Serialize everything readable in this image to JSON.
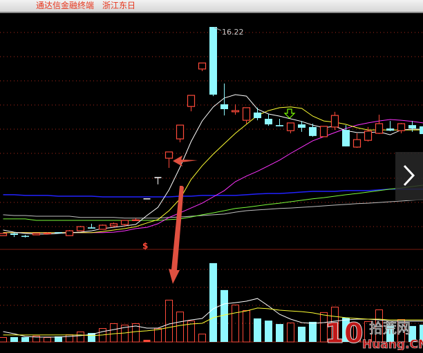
{
  "window": {
    "app_title": "通达信金融终端",
    "stock_name": "浙江东日"
  },
  "nav": {
    "next_icon": "chevron-right-icon"
  },
  "watermark": {
    "text_number": "10",
    "text_cn": "拾荒网",
    "text_en": "Huang.CN"
  },
  "annotations": {
    "high_label": "16.22",
    "dollar_mark": "$",
    "left_arrow_color": "#e05040",
    "down_arrow_color": "#e05040",
    "signal_arrow_color": "#7cfc00"
  },
  "colors": {
    "up": "#ff4a3a",
    "down": "#8ff8ff",
    "flat": "#ffffff",
    "grid": "#b02a1a",
    "ma5": "#ffffff",
    "ma10": "#ffff33",
    "ma20": "#ff33ff",
    "ma_green": "#7cfc3a",
    "ma_gray": "#c0c0c0",
    "ma_blue": "#2222ff"
  },
  "chart_data": [
    {
      "type": "candlestick",
      "title": "",
      "max_price_label": 16.22,
      "grid": true,
      "ohlc": [
        [
          7.59,
          7.68,
          7.59,
          7.68
        ],
        [
          7.68,
          7.73,
          7.53,
          7.62
        ],
        [
          7.58,
          7.62,
          7.51,
          7.56
        ],
        [
          7.62,
          7.68,
          7.62,
          7.68
        ],
        [
          7.68,
          7.73,
          7.68,
          7.69
        ],
        [
          7.73,
          7.73,
          7.7,
          7.7
        ],
        [
          7.59,
          7.82,
          7.59,
          7.79
        ],
        [
          7.79,
          7.99,
          7.79,
          7.96
        ],
        [
          7.93,
          8.08,
          7.88,
          7.88
        ],
        [
          7.85,
          8.05,
          7.85,
          8.02
        ],
        [
          7.99,
          8.13,
          7.93,
          8.08
        ],
        [
          8.05,
          8.22,
          7.96,
          8.22
        ],
        [
          8.21,
          8.31,
          8.21,
          8.24
        ],
        [
          9.11,
          9.11,
          9.11,
          9.11
        ],
        [
          9.99,
          9.99,
          9.71,
          9.99
        ],
        [
          10.79,
          11.05,
          10.39,
          11.05
        ],
        [
          11.59,
          12.16,
          11.45,
          12.16
        ],
        [
          12.93,
          13.39,
          12.73,
          13.39
        ],
        [
          14.48,
          14.73,
          14.39,
          14.73
        ],
        [
          16.22,
          16.22,
          13.36,
          13.42
        ],
        [
          13.02,
          13.88,
          12.56,
          12.82
        ],
        [
          12.71,
          13.02,
          12.59,
          12.76
        ],
        [
          12.36,
          12.88,
          12.22,
          12.88
        ],
        [
          12.68,
          12.88,
          12.36,
          12.45
        ],
        [
          12.42,
          12.62,
          12.13,
          12.19
        ],
        [
          12.16,
          12.42,
          12.11,
          12.11
        ],
        [
          11.93,
          12.25,
          11.82,
          12.25
        ],
        [
          12.19,
          12.33,
          11.88,
          12.05
        ],
        [
          12.08,
          12.22,
          11.68,
          11.71
        ],
        [
          11.68,
          12.11,
          11.68,
          12.11
        ],
        [
          12.08,
          12.71,
          11.96,
          12.56
        ],
        [
          11.96,
          12.16,
          11.28,
          11.28
        ],
        [
          11.25,
          11.82,
          11.22,
          11.56
        ],
        [
          11.53,
          12.08,
          11.48,
          11.91
        ],
        [
          11.82,
          12.59,
          11.79,
          12.22
        ],
        [
          12.02,
          12.33,
          11.91,
          11.93
        ],
        [
          11.93,
          12.25,
          11.82,
          12.22
        ],
        [
          12.16,
          12.33,
          11.88,
          12.02
        ],
        [
          12.11,
          12.11,
          11.79,
          11.79
        ]
      ],
      "series": [
        {
          "key": "ma5",
          "values": [
            7.82,
            7.73,
            7.68,
            7.65,
            7.65,
            7.68,
            7.71,
            7.73,
            7.79,
            7.88,
            7.93,
            7.99,
            8.05,
            8.42,
            8.76,
            9.48,
            10.42,
            11.48,
            12.33,
            12.91,
            13.28,
            13.42,
            13.36,
            12.82,
            12.62,
            12.53,
            12.42,
            12.31,
            12.16,
            12.05,
            12.11,
            11.93,
            11.85,
            11.85,
            11.88,
            11.76,
            11.96,
            11.99,
            11.99
          ]
        },
        {
          "key": "ma10",
          "values": [
            7.71,
            7.71,
            7.71,
            7.71,
            7.71,
            7.71,
            7.71,
            7.71,
            7.71,
            7.76,
            7.82,
            7.88,
            7.96,
            8.11,
            8.25,
            8.62,
            9.11,
            9.91,
            10.48,
            10.96,
            11.39,
            11.82,
            12.19,
            12.56,
            12.76,
            12.88,
            12.91,
            12.85,
            12.53,
            12.33,
            12.28,
            12.19,
            12.05,
            11.96,
            11.96,
            11.96,
            11.96,
            11.96,
            11.96
          ]
        },
        {
          "key": "ma20",
          "values": [
            7.71,
            7.71,
            7.71,
            7.71,
            7.71,
            7.71,
            7.71,
            7.71,
            7.71,
            7.71,
            7.73,
            7.79,
            7.88,
            7.93,
            8.08,
            8.34,
            8.53,
            8.73,
            8.93,
            9.19,
            9.45,
            9.82,
            10.05,
            10.25,
            10.48,
            10.71,
            10.99,
            11.25,
            11.51,
            11.68,
            11.85,
            12.02,
            12.16,
            12.25,
            12.33,
            12.39,
            12.36,
            12.31,
            12.25
          ]
        },
        {
          "key": "ma_green",
          "values": [
            8.28,
            8.28,
            8.28,
            8.22,
            8.22,
            8.22,
            8.22,
            8.22,
            8.22,
            8.22,
            8.22,
            8.22,
            8.22,
            8.22,
            8.22,
            8.25,
            8.28,
            8.36,
            8.45,
            8.53,
            8.62,
            8.71,
            8.76,
            8.82,
            8.88,
            8.93,
            8.99,
            9.05,
            9.11,
            9.16,
            9.22,
            9.28,
            9.33,
            9.39,
            9.45,
            9.51,
            9.56,
            9.62,
            9.68
          ]
        },
        {
          "key": "ma_gray",
          "values": [
            8.45,
            8.42,
            8.42,
            8.39,
            8.39,
            8.39,
            8.39,
            8.34,
            8.34,
            8.34,
            8.34,
            8.31,
            8.31,
            8.31,
            8.31,
            8.34,
            8.36,
            8.39,
            8.42,
            8.45,
            8.48,
            8.56,
            8.62,
            8.65,
            8.68,
            8.71,
            8.73,
            8.76,
            8.79,
            8.82,
            8.85,
            8.88,
            8.91,
            8.93,
            8.96,
            8.99,
            9.02,
            9.05,
            9.08
          ]
        },
        {
          "key": "ma_blue",
          "values": [
            9.28,
            9.28,
            9.25,
            9.25,
            9.25,
            9.22,
            9.22,
            9.22,
            9.22,
            9.19,
            9.19,
            9.19,
            9.19,
            9.19,
            9.19,
            9.19,
            9.22,
            9.22,
            9.25,
            9.25,
            9.25,
            9.25,
            9.28,
            9.31,
            9.33,
            9.33,
            9.36,
            9.39,
            9.42,
            9.42,
            9.42,
            9.45,
            9.45,
            9.45,
            9.48,
            9.51,
            9.51,
            9.51,
            9.51
          ]
        }
      ]
    },
    {
      "type": "bar",
      "title": "",
      "grid": true,
      "values": [
        2.3,
        2.3,
        2.3,
        3.1,
        2.3,
        2.7,
        3.8,
        5.4,
        4.6,
        7.3,
        10,
        9.2,
        10,
        0.8,
        7.3,
        23.1,
        16.5,
        11.5,
        4.2,
        43.5,
        28.5,
        20.4,
        17.3,
        12.7,
        11.5,
        9.6,
        10.4,
        8.1,
        10.8,
        16.2,
        19.2,
        13.1,
        9.2,
        11.2,
        17.7,
        9.2,
        12.3,
        8.5,
        9.2
      ],
      "series": [
        {
          "key": "vol_ma_white",
          "values": [
            5.4,
            4.2,
            2.7,
            2.3,
            2.3,
            2.3,
            2.7,
            3.1,
            3.8,
            5.4,
            6.5,
            7.7,
            8.5,
            7.3,
            7.3,
            9.6,
            10.8,
            11.9,
            12.7,
            18.1,
            20.8,
            21.5,
            22.3,
            23.8,
            19.6,
            15,
            12.3,
            10.4,
            10,
            10.4,
            11.2,
            11.9,
            12.3,
            12.3,
            11.9,
            11.2,
            11.2,
            11.2,
            11.2
          ]
        },
        {
          "key": "vol_ma_yellow",
          "values": [
            3.5,
            3.5,
            3.5,
            3.5,
            3.5,
            3.5,
            3.5,
            3.5,
            3.1,
            3.5,
            4.2,
            4.6,
            5.4,
            5.8,
            6.5,
            7.7,
            8.8,
            9.6,
            10,
            13.1,
            14.6,
            15.8,
            16.9,
            18.5,
            18.1,
            17.3,
            16.9,
            16.5,
            15.8,
            14.6,
            13.8,
            13.1,
            12.7,
            12.3,
            12.3,
            11.9,
            11.9,
            11.9,
            11.9
          ]
        }
      ]
    }
  ]
}
